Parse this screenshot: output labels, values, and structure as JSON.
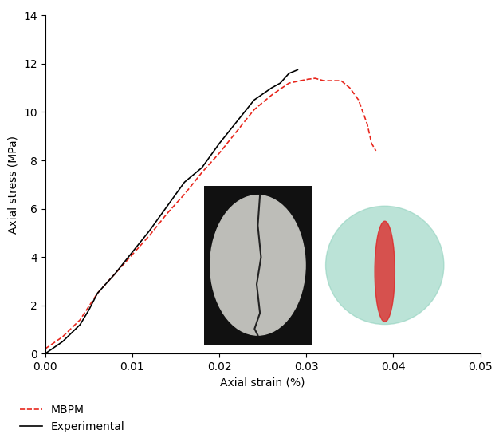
{
  "chart_data": {
    "type": "line",
    "x_label": "Axial strain (%)",
    "y_label": "Axial stress (MPa)",
    "xlim": [
      0,
      0.05
    ],
    "xticks": [
      {
        "value": 0,
        "label": "0.00"
      },
      0.01,
      0.02,
      0.03,
      0.04,
      0.05
    ],
    "ylim": [
      0,
      14
    ],
    "yticks": [
      0,
      2,
      4,
      6,
      8,
      10,
      12,
      14
    ],
    "legend": "lower left",
    "series": [
      {
        "name": "MBPM",
        "color": "#e8261c",
        "line_style": "dashed",
        "x": [
          0,
          0.002,
          0.004,
          0.006,
          0.008,
          0.01,
          0.012,
          0.014,
          0.016,
          0.018,
          0.02,
          0.022,
          0.024,
          0.026,
          0.028,
          0.03,
          0.031,
          0.032,
          0.034,
          0.035,
          0.036,
          0.037,
          0.0375,
          0.038
        ],
        "values": [
          0.2,
          0.7,
          1.4,
          2.5,
          3.3,
          4.1,
          4.9,
          5.8,
          6.6,
          7.5,
          8.3,
          9.2,
          10.1,
          10.7,
          11.2,
          11.35,
          11.4,
          11.3,
          11.3,
          11.0,
          10.5,
          9.5,
          8.7,
          8.4
        ]
      },
      {
        "name": "Experimental",
        "color": "#000000",
        "line_style": "solid",
        "x": [
          0,
          0.002,
          0.004,
          0.005,
          0.006,
          0.008,
          0.01,
          0.012,
          0.014,
          0.016,
          0.018,
          0.02,
          0.022,
          0.024,
          0.026,
          0.027,
          0.028,
          0.029
        ],
        "values": [
          0.0,
          0.5,
          1.2,
          1.8,
          2.5,
          3.3,
          4.2,
          5.1,
          6.1,
          7.1,
          7.7,
          8.7,
          9.6,
          10.5,
          11.0,
          11.2,
          11.6,
          11.75
        ]
      }
    ]
  }
}
